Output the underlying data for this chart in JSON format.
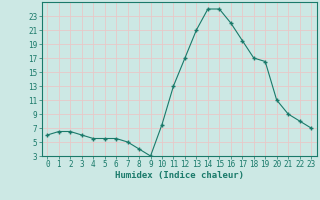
{
  "x": [
    0,
    1,
    2,
    3,
    4,
    5,
    6,
    7,
    8,
    9,
    10,
    11,
    12,
    13,
    14,
    15,
    16,
    17,
    18,
    19,
    20,
    21,
    22,
    23
  ],
  "y": [
    6,
    6.5,
    6.5,
    6,
    5.5,
    5.5,
    5.5,
    5,
    4,
    3,
    7.5,
    13,
    17,
    21,
    24,
    24,
    22,
    19.5,
    17,
    16.5,
    11,
    9,
    8,
    7
  ],
  "xlabel": "Humidex (Indice chaleur)",
  "line_color": "#1a7a6a",
  "bg_color": "#cce8e4",
  "grid_color": "#e8c8c8",
  "ylim": [
    3,
    25
  ],
  "xlim": [
    -0.5,
    23.5
  ],
  "yticks": [
    3,
    5,
    7,
    9,
    11,
    13,
    15,
    17,
    19,
    21,
    23
  ],
  "xticks": [
    0,
    1,
    2,
    3,
    4,
    5,
    6,
    7,
    8,
    9,
    10,
    11,
    12,
    13,
    14,
    15,
    16,
    17,
    18,
    19,
    20,
    21,
    22,
    23
  ],
  "xlabel_color": "#1a7a6a",
  "tick_color": "#1a7a6a",
  "spine_color": "#1a7a6a"
}
